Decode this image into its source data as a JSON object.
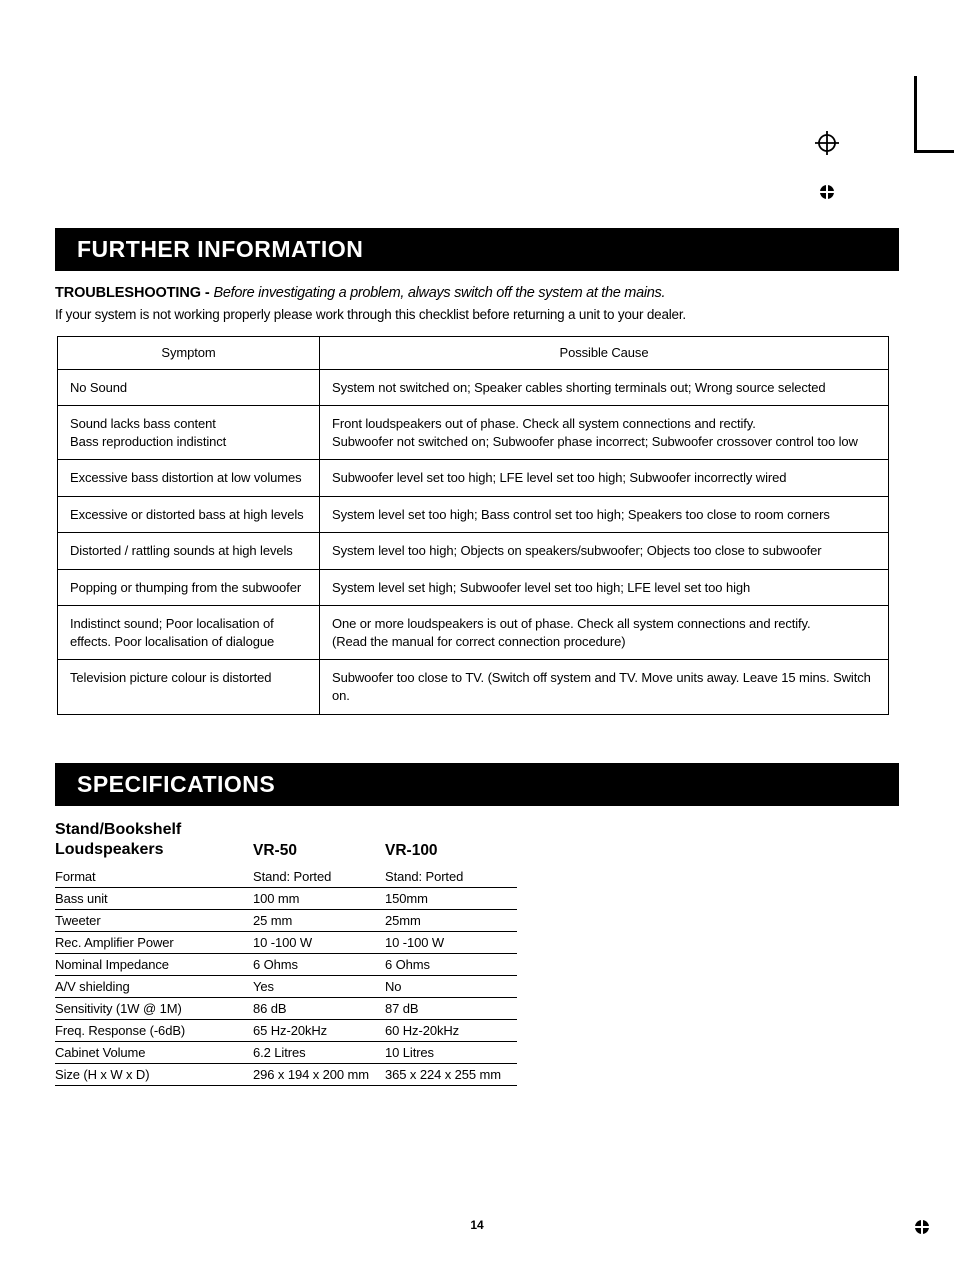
{
  "header1": "FURTHER INFORMATION",
  "trouble_label": "TROUBLESHOOTING - ",
  "trouble_italic": "Before investigating a problem, always switch off the system at the mains.",
  "trouble_line2": "If your system is not working properly please work through this checklist before returning a unit to your dealer.",
  "table_head": {
    "c1": "Symptom",
    "c2": "Possible Cause"
  },
  "rows": [
    {
      "s": "No Sound",
      "c": "System not switched on; Speaker cables shorting terminals out; Wrong source selected"
    },
    {
      "s": "Sound lacks bass content\nBass reproduction indistinct",
      "c": "Front loudspeakers out of phase. Check all system connections and rectify.\nSubwoofer not switched on; Subwoofer phase incorrect; Subwoofer crossover control too low"
    },
    {
      "s": "Excessive bass distortion at low volumes",
      "c": "Subwoofer level set too high; LFE level set too high; Subwoofer incorrectly wired"
    },
    {
      "s": "Excessive or distorted bass at high levels",
      "c": "System level set too high; Bass control set too high; Speakers too close to room corners"
    },
    {
      "s": "Distorted / rattling sounds at high levels",
      "c": "System level too high; Objects on speakers/subwoofer; Objects too close to subwoofer"
    },
    {
      "s": "Popping or thumping from the subwoofer",
      "c": "System level set high; Subwoofer level set too high; LFE level set too high"
    },
    {
      "s": "Indistinct sound; Poor localisation of effects. Poor localisation of dialogue",
      "c": "One or more loudspeakers is out of phase.  Check all system connections and rectify.\n(Read the manual for correct connection procedure)"
    },
    {
      "s": "Television picture colour is distorted",
      "c": "Subwoofer too close to TV. (Switch off system and TV. Move units away. Leave 15 mins. Switch on."
    }
  ],
  "header2": "SPECIFICATIONS",
  "spec_title": "Stand/Bookshelf\nLoudspeakers",
  "spec_cols": {
    "c1": "VR-50",
    "c2": "VR-100"
  },
  "spec_rows": [
    {
      "l": "Format",
      "v1": "Stand: Ported",
      "v2": "Stand: Ported"
    },
    {
      "l": "Bass unit",
      "v1": "100 mm",
      "v2": "150mm"
    },
    {
      "l": "Tweeter",
      "v1": "25 mm",
      "v2": "25mm"
    },
    {
      "l": "Rec. Amplifier Power",
      "v1": "10 -100 W",
      "v2": "10 -100 W"
    },
    {
      "l": "Nominal Impedance",
      "v1": "6 Ohms",
      "v2": "6 Ohms"
    },
    {
      "l": "A/V shielding",
      "v1": "Yes",
      "v2": "No"
    },
    {
      "l": "Sensitivity (1W @ 1M)",
      "v1": "86 dB",
      "v2": "87 dB"
    },
    {
      "l": "Freq. Response (-6dB)",
      "v1": "65 Hz-20kHz",
      "v2": "60 Hz-20kHz"
    },
    {
      "l": "Cabinet Volume",
      "v1": "6.2 Litres",
      "v2": "10 Litres"
    },
    {
      "l": "Size (H x W x D)",
      "v1": "296 x 194 x 200 mm",
      "v2": "365 x 224 x 255 mm"
    }
  ],
  "page_number": "14"
}
